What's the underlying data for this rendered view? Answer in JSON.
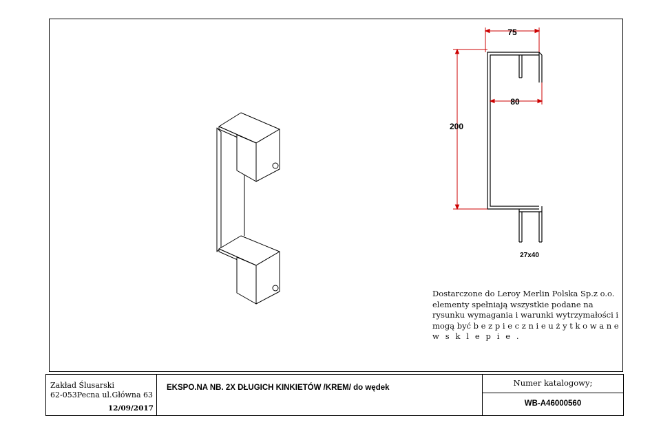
{
  "dimensions": {
    "width": "75",
    "depth": "80",
    "height": "200",
    "profile": "27x40"
  },
  "note": {
    "line1": "Dostarczone do Leroy Merlin Polska Sp.z o.o.",
    "line2": "elementy spełniają wszystkie podane na",
    "line3": "rysunku wymagania i warunki wytrzymałości i",
    "line4": "mogą być b e z p i e c z n i e   u ż y t k o w a n e",
    "line5": "w   s k l e p i e ."
  },
  "title_block": {
    "company_name": "Zakład Ślusarski",
    "company_address": "62-053Pecna ul.Główna 63",
    "date": "12/09/2017",
    "title": "EKSPO.NA NB. 2X DŁUGICH KINKIETÓW /KREM/ do wędek",
    "catalog_label": "Numer katalogowy;",
    "catalog_number": "WB-A46000560"
  },
  "colors": {
    "dimension_line": "#cc0000",
    "outline": "#000000"
  }
}
